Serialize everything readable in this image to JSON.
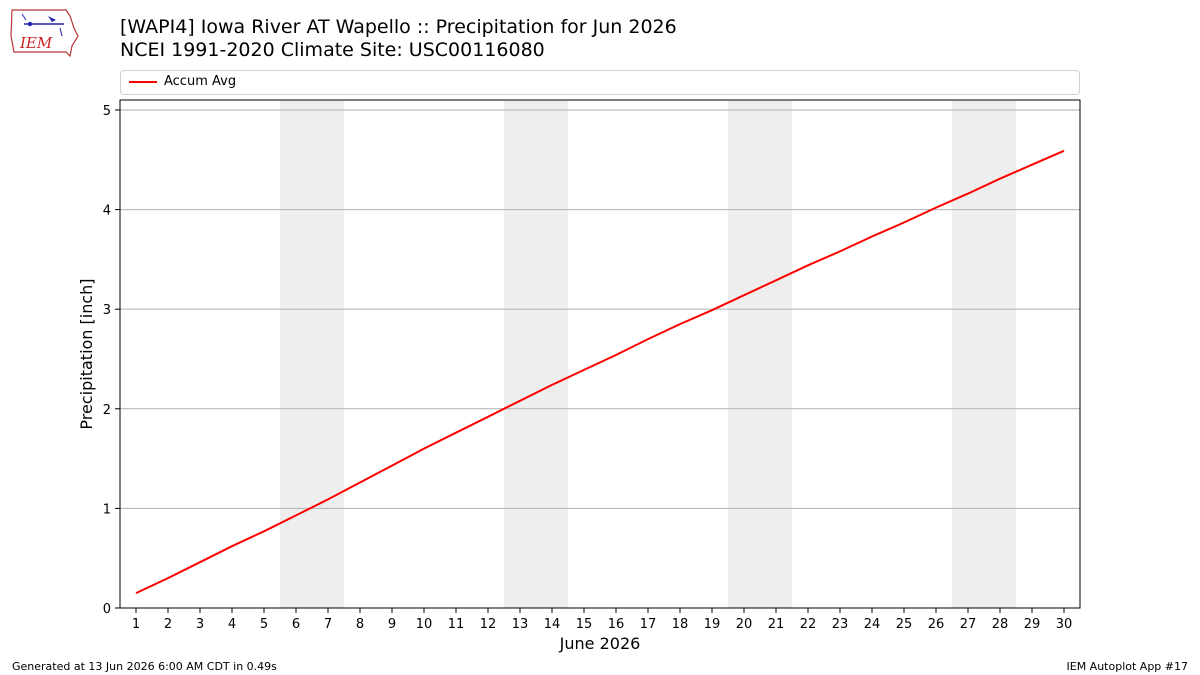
{
  "header": {
    "title_line1": "[WAPI4] Iowa River  AT Wapello :: Precipitation for Jun 2026",
    "title_line2": "NCEI 1991-2020 Climate Site: USC00116080"
  },
  "logo": {
    "text": "IEM",
    "icon": "iem-iowa-state-logo"
  },
  "footer": {
    "left": "Generated at 13 Jun 2026 6:00 AM CDT in 0.49s",
    "right": "IEM Autoplot App #17"
  },
  "colors": {
    "line": "#ff0000",
    "weekend": "#eeeeee",
    "grid": "#b0b0b0"
  },
  "chart_data": {
    "type": "line",
    "xlabel": "June 2026",
    "ylabel": "Precipitation [inch]",
    "xlim": [
      0.5,
      30.5
    ],
    "ylim": [
      0,
      5.1
    ],
    "x": [
      1,
      2,
      3,
      4,
      5,
      6,
      7,
      8,
      9,
      10,
      11,
      12,
      13,
      14,
      15,
      16,
      17,
      18,
      19,
      20,
      21,
      22,
      23,
      24,
      25,
      26,
      27,
      28,
      29,
      30
    ],
    "x_tick_labels": [
      "1",
      "2",
      "3",
      "4",
      "5",
      "6",
      "7",
      "8",
      "9",
      "10",
      "11",
      "12",
      "13",
      "14",
      "15",
      "16",
      "17",
      "18",
      "19",
      "20",
      "21",
      "22",
      "23",
      "24",
      "25",
      "26",
      "27",
      "28",
      "29",
      "30"
    ],
    "y_ticks": [
      0,
      1,
      2,
      3,
      4,
      5
    ],
    "y_tick_labels": [
      "0",
      "1",
      "2",
      "3",
      "4",
      "5"
    ],
    "series": [
      {
        "name": "Accum Avg",
        "color": "#ff0000",
        "values": [
          0.15,
          0.3,
          0.46,
          0.62,
          0.77,
          0.93,
          1.09,
          1.26,
          1.43,
          1.6,
          1.76,
          1.92,
          2.08,
          2.24,
          2.39,
          2.54,
          2.7,
          2.85,
          2.99,
          3.14,
          3.29,
          3.44,
          3.58,
          3.73,
          3.87,
          4.02,
          4.16,
          4.31,
          4.45,
          4.59
        ]
      }
    ],
    "shaded_days": [
      [
        6,
        7
      ],
      [
        13,
        14
      ],
      [
        20,
        21
      ],
      [
        27,
        28
      ]
    ],
    "grid": "horizontal",
    "legend": "top"
  }
}
